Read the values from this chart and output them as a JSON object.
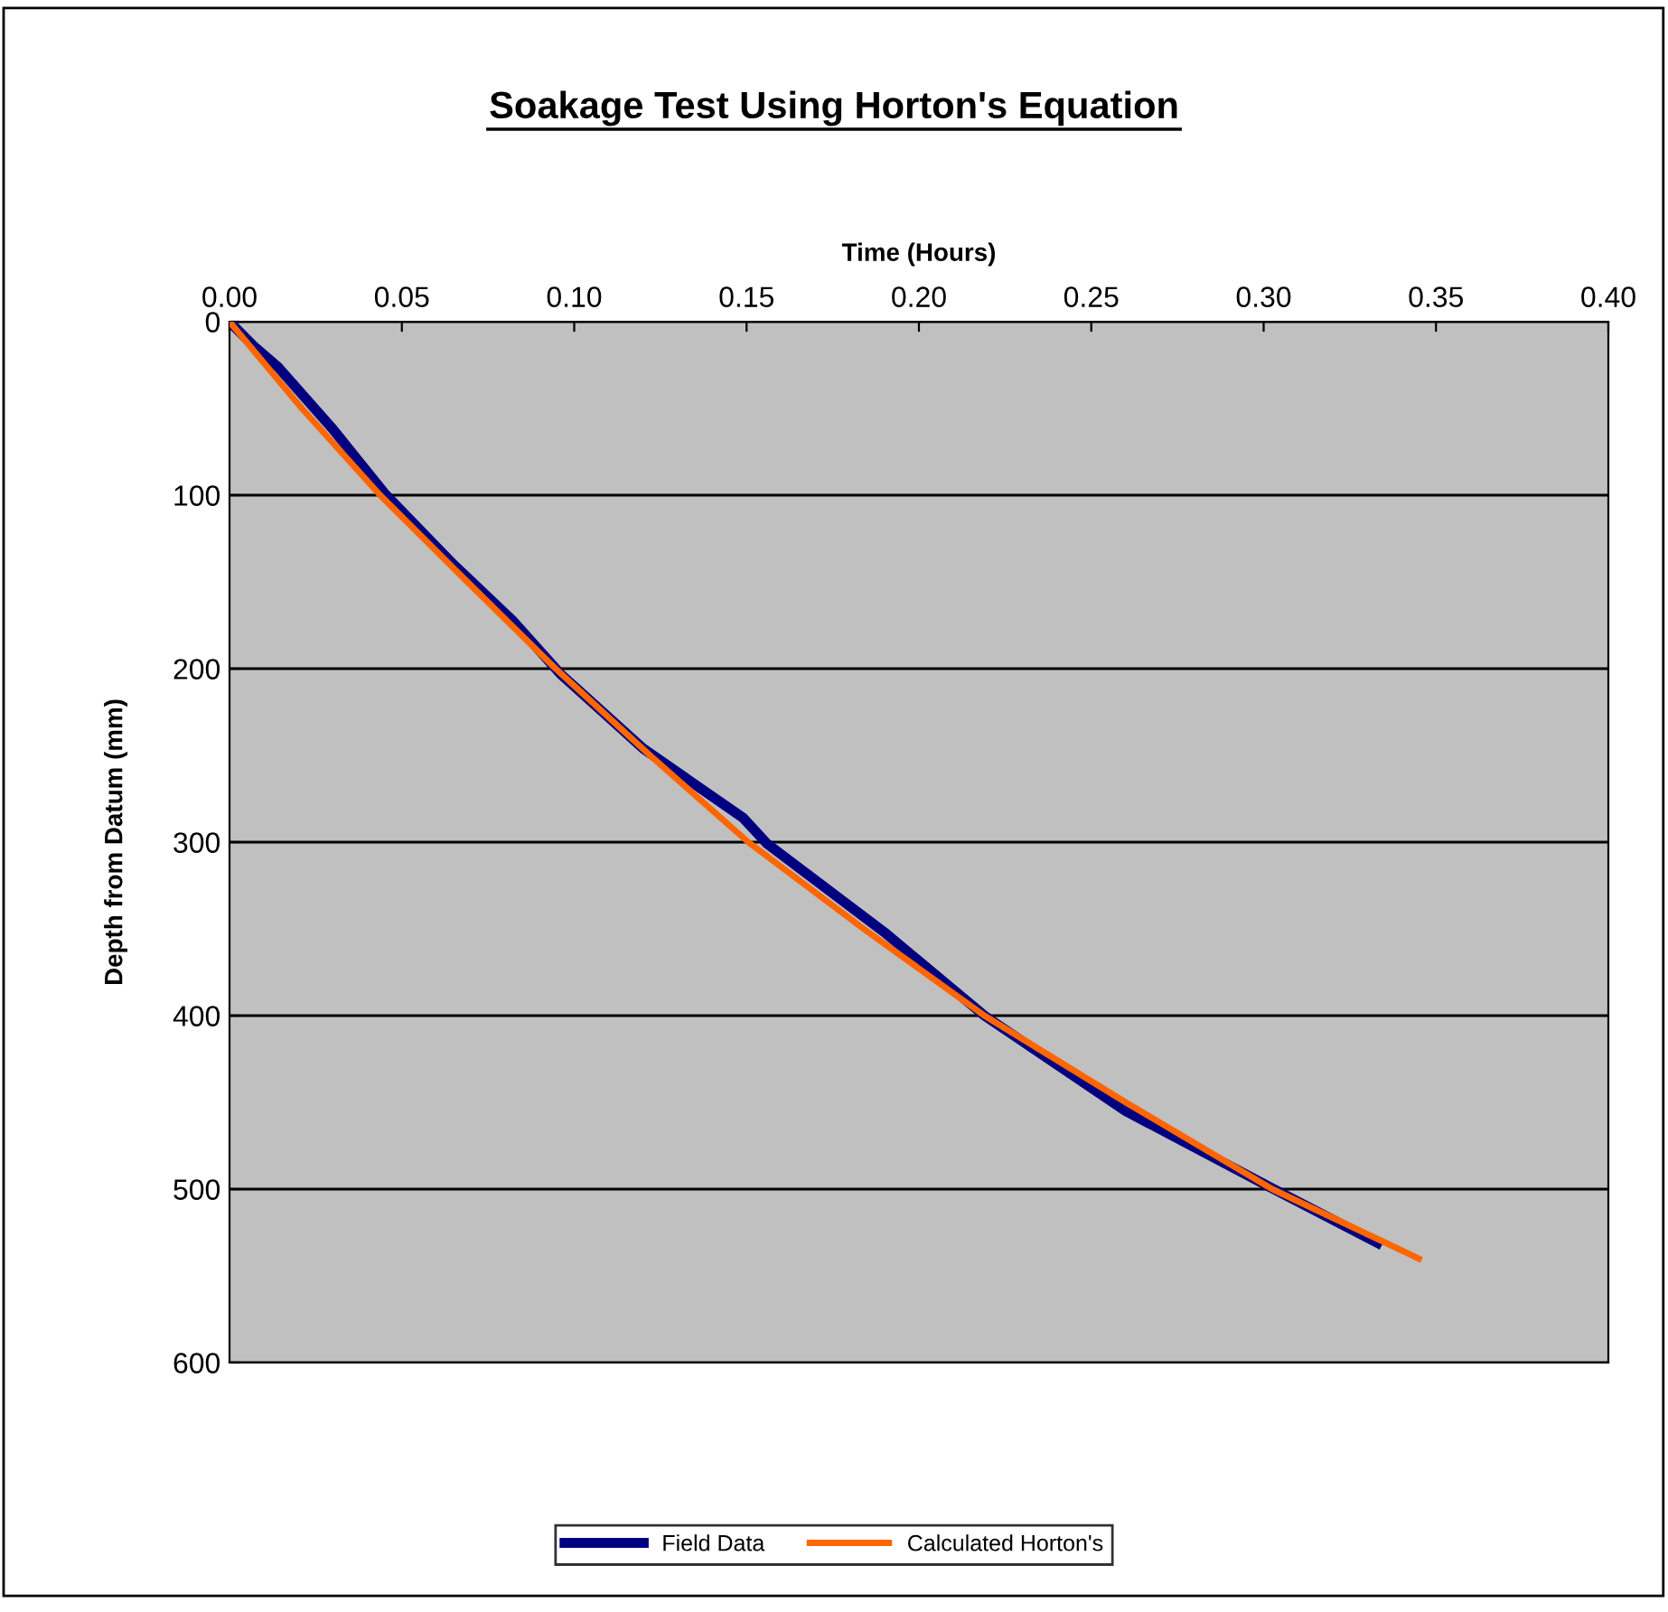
{
  "chart_data": {
    "type": "line",
    "title": "Soakage Test Using Horton's Equation",
    "xlabel": "Time (Hours)",
    "ylabel": "Depth from Datum (mm)",
    "xlim": [
      0,
      0.4
    ],
    "xticks": [
      {
        "value": 0,
        "label": "0.00"
      },
      {
        "value": 0.05,
        "label": "0.05"
      },
      {
        "value": 0.1,
        "label": "0.10"
      },
      {
        "value": 0.15,
        "label": "0.15"
      },
      {
        "value": 0.2,
        "label": "0.20"
      },
      {
        "value": 0.25,
        "label": "0.25"
      },
      {
        "value": 0.3,
        "label": "0.30"
      },
      {
        "value": 0.35,
        "label": "0.35"
      },
      {
        "value": 0.4,
        "label": "0.40"
      }
    ],
    "ylim": [
      600,
      0
    ],
    "yticks": [
      0,
      100,
      200,
      300,
      400,
      500,
      600
    ],
    "grid": "y",
    "legend": "bottom",
    "marker": "none",
    "line_style": "solid",
    "series": [
      {
        "name": "Field Data",
        "color": "#000080",
        "x": [
          0,
          0.007,
          0.014,
          0.03,
          0.045,
          0.065,
          0.082,
          0.096,
          0.12,
          0.149,
          0.156,
          0.19,
          0.219,
          0.26,
          0.302,
          0.333
        ],
        "values": [
          0,
          14,
          26,
          62,
          99,
          140,
          172,
          203,
          246,
          286,
          301,
          352,
          400,
          455,
          499,
          531
        ]
      },
      {
        "name": "Calculated Horton's",
        "color": "#ff6600",
        "x": [
          0,
          0.021,
          0.0437,
          0.069,
          0.0946,
          0.122,
          0.1505,
          0.184,
          0.219,
          0.26,
          0.3025,
          0.345
        ],
        "values": [
          0,
          50,
          100,
          150,
          200,
          250,
          300,
          350,
          400,
          450,
          500,
          540
        ]
      }
    ]
  }
}
